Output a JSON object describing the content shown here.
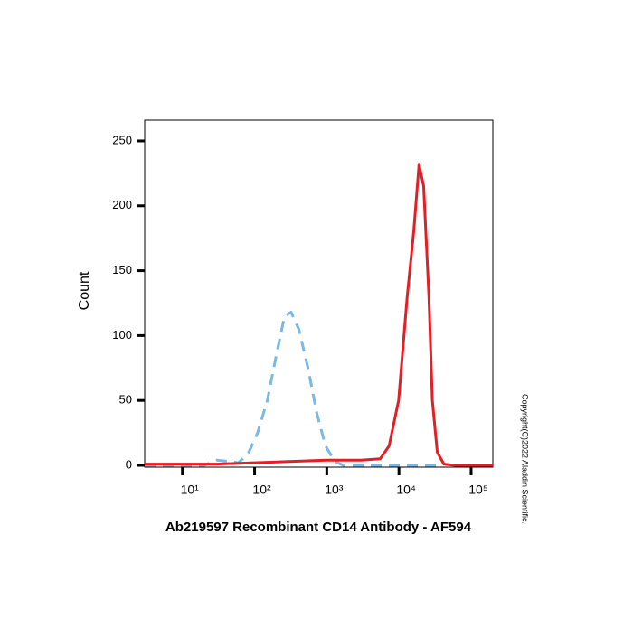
{
  "chart_data": {
    "type": "line",
    "xlabel": "Ab219597 Recombinant CD14 Antibody - AF594",
    "ylabel": "Count",
    "copyright": "Copyright(C)2022 Aladdin Scientific.",
    "xscale": "log",
    "xlim": [
      3,
      200000
    ],
    "ylim": [
      0,
      266
    ],
    "xticks": [
      {
        "value": 10,
        "label": "10¹"
      },
      {
        "value": 100,
        "label": "10²"
      },
      {
        "value": 1000,
        "label": "10³"
      },
      {
        "value": 10000,
        "label": "10⁴"
      },
      {
        "value": 100000,
        "label": "10⁵"
      }
    ],
    "yticks": [
      0,
      50,
      100,
      150,
      200,
      250
    ],
    "series": [
      {
        "color": "#7ab8e6",
        "dashed": true,
        "x": [
          3,
          20,
          30,
          45,
          60,
          83,
          110,
          150,
          200,
          260,
          320,
          410,
          550,
          730,
          960,
          1300,
          1700,
          5000,
          20000,
          40000
        ],
        "values": [
          0,
          0,
          4,
          3,
          2,
          10,
          25,
          50,
          85,
          115,
          118,
          105,
          75,
          40,
          15,
          3,
          0,
          0,
          0,
          0
        ]
      },
      {
        "color": "#e31e24",
        "dashed": false,
        "x": [
          3,
          30,
          100,
          300,
          1000,
          3000,
          5500,
          7300,
          9900,
          13000,
          16000,
          19000,
          22000,
          26000,
          29000,
          34000,
          42000,
          60000,
          200000
        ],
        "values": [
          1,
          1,
          2,
          3,
          4,
          4,
          5,
          15,
          50,
          130,
          180,
          232,
          215,
          130,
          50,
          10,
          1,
          0,
          0
        ]
      }
    ]
  }
}
